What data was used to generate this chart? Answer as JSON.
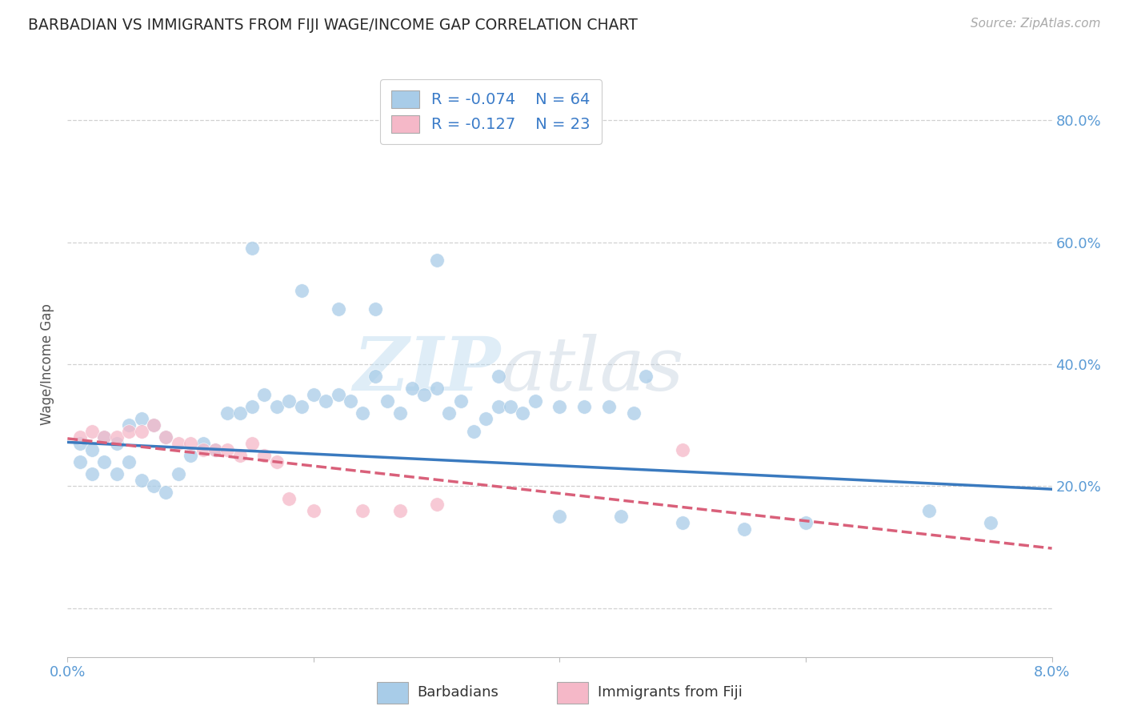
{
  "title": "BARBADIAN VS IMMIGRANTS FROM FIJI WAGE/INCOME GAP CORRELATION CHART",
  "source": "Source: ZipAtlas.com",
  "ylabel": "Wage/Income Gap",
  "blue_color": "#a8cce8",
  "pink_color": "#f5b8c8",
  "trend_blue": "#3a7abf",
  "trend_pink": "#d9607a",
  "grid_color": "#cccccc",
  "title_color": "#2a2a2a",
  "axis_color": "#5b9bd5",
  "legend_text_color": "#3a7bc8",
  "watermark_zip": "ZIP",
  "watermark_atlas": "atlas",
  "xlim": [
    0.0,
    0.08
  ],
  "ylim": [
    -0.08,
    0.88
  ],
  "xticks": [
    0.0,
    0.02,
    0.04,
    0.06,
    0.08
  ],
  "xtick_labels": [
    "0.0%",
    "",
    "",
    "",
    "8.0%"
  ],
  "yticks": [
    0.0,
    0.2,
    0.4,
    0.6,
    0.8
  ],
  "ytick_labels_right": [
    "",
    "20.0%",
    "40.0%",
    "60.0%",
    "80.0%"
  ],
  "trend_blue_y0": 0.272,
  "trend_blue_y1": 0.195,
  "trend_pink_y0": 0.278,
  "trend_pink_y1": 0.098,
  "barbadians_x": [
    0.001,
    0.001,
    0.002,
    0.002,
    0.003,
    0.003,
    0.004,
    0.004,
    0.005,
    0.005,
    0.006,
    0.006,
    0.007,
    0.007,
    0.008,
    0.008,
    0.009,
    0.01,
    0.011,
    0.012,
    0.013,
    0.014,
    0.015,
    0.016,
    0.017,
    0.018,
    0.019,
    0.02,
    0.021,
    0.022,
    0.023,
    0.024,
    0.025,
    0.026,
    0.027,
    0.028,
    0.029,
    0.03,
    0.031,
    0.032,
    0.033,
    0.034,
    0.035,
    0.036,
    0.037,
    0.038,
    0.04,
    0.042,
    0.044,
    0.046,
    0.015,
    0.019,
    0.022,
    0.025,
    0.03,
    0.035,
    0.04,
    0.045,
    0.05,
    0.055,
    0.06,
    0.07,
    0.075,
    0.047
  ],
  "barbadians_y": [
    0.27,
    0.24,
    0.26,
    0.22,
    0.28,
    0.24,
    0.27,
    0.22,
    0.3,
    0.24,
    0.31,
    0.21,
    0.3,
    0.2,
    0.28,
    0.19,
    0.22,
    0.25,
    0.27,
    0.26,
    0.32,
    0.32,
    0.33,
    0.35,
    0.33,
    0.34,
    0.33,
    0.35,
    0.34,
    0.35,
    0.34,
    0.32,
    0.38,
    0.34,
    0.32,
    0.36,
    0.35,
    0.36,
    0.32,
    0.34,
    0.29,
    0.31,
    0.33,
    0.33,
    0.32,
    0.34,
    0.33,
    0.33,
    0.33,
    0.32,
    0.59,
    0.52,
    0.49,
    0.49,
    0.57,
    0.38,
    0.15,
    0.15,
    0.14,
    0.13,
    0.14,
    0.16,
    0.14,
    0.38
  ],
  "fiji_x": [
    0.001,
    0.002,
    0.003,
    0.004,
    0.005,
    0.006,
    0.007,
    0.008,
    0.009,
    0.01,
    0.011,
    0.012,
    0.013,
    0.014,
    0.015,
    0.016,
    0.017,
    0.018,
    0.02,
    0.024,
    0.027,
    0.03,
    0.05
  ],
  "fiji_y": [
    0.28,
    0.29,
    0.28,
    0.28,
    0.29,
    0.29,
    0.3,
    0.28,
    0.27,
    0.27,
    0.26,
    0.26,
    0.26,
    0.25,
    0.27,
    0.25,
    0.24,
    0.18,
    0.16,
    0.16,
    0.16,
    0.17,
    0.26
  ]
}
